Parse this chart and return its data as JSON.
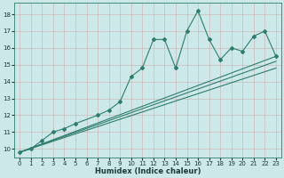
{
  "xlabel": "Humidex (Indice chaleur)",
  "bg_color": "#cce8e8",
  "grid_color": "#b0cccc",
  "line_color": "#2e7d6e",
  "xlim": [
    -0.5,
    23.5
  ],
  "ylim": [
    9.5,
    18.7
  ],
  "xticks": [
    0,
    1,
    2,
    3,
    4,
    5,
    6,
    7,
    8,
    9,
    10,
    11,
    12,
    13,
    14,
    15,
    16,
    17,
    18,
    19,
    20,
    21,
    22,
    23
  ],
  "yticks": [
    10,
    11,
    12,
    13,
    14,
    15,
    16,
    17,
    18
  ],
  "series": [
    {
      "x": [
        0,
        1,
        2,
        3,
        4,
        5,
        7,
        8,
        9,
        10,
        11,
        12,
        13,
        14,
        15,
        16,
        17,
        18,
        19,
        20,
        21,
        22,
        23
      ],
      "y": [
        9.8,
        10.0,
        10.5,
        11.0,
        11.2,
        11.5,
        12.0,
        12.3,
        12.8,
        14.3,
        14.8,
        16.5,
        16.5,
        14.8,
        17.0,
        18.2,
        16.5,
        15.3,
        16.0,
        15.8,
        16.7,
        17.0,
        15.5
      ]
    },
    {
      "x": [
        0,
        23
      ],
      "y": [
        9.8,
        15.5
      ]
    },
    {
      "x": [
        0,
        23
      ],
      "y": [
        9.8,
        15.2
      ]
    },
    {
      "x": [
        0,
        23
      ],
      "y": [
        9.8,
        14.8
      ]
    }
  ]
}
